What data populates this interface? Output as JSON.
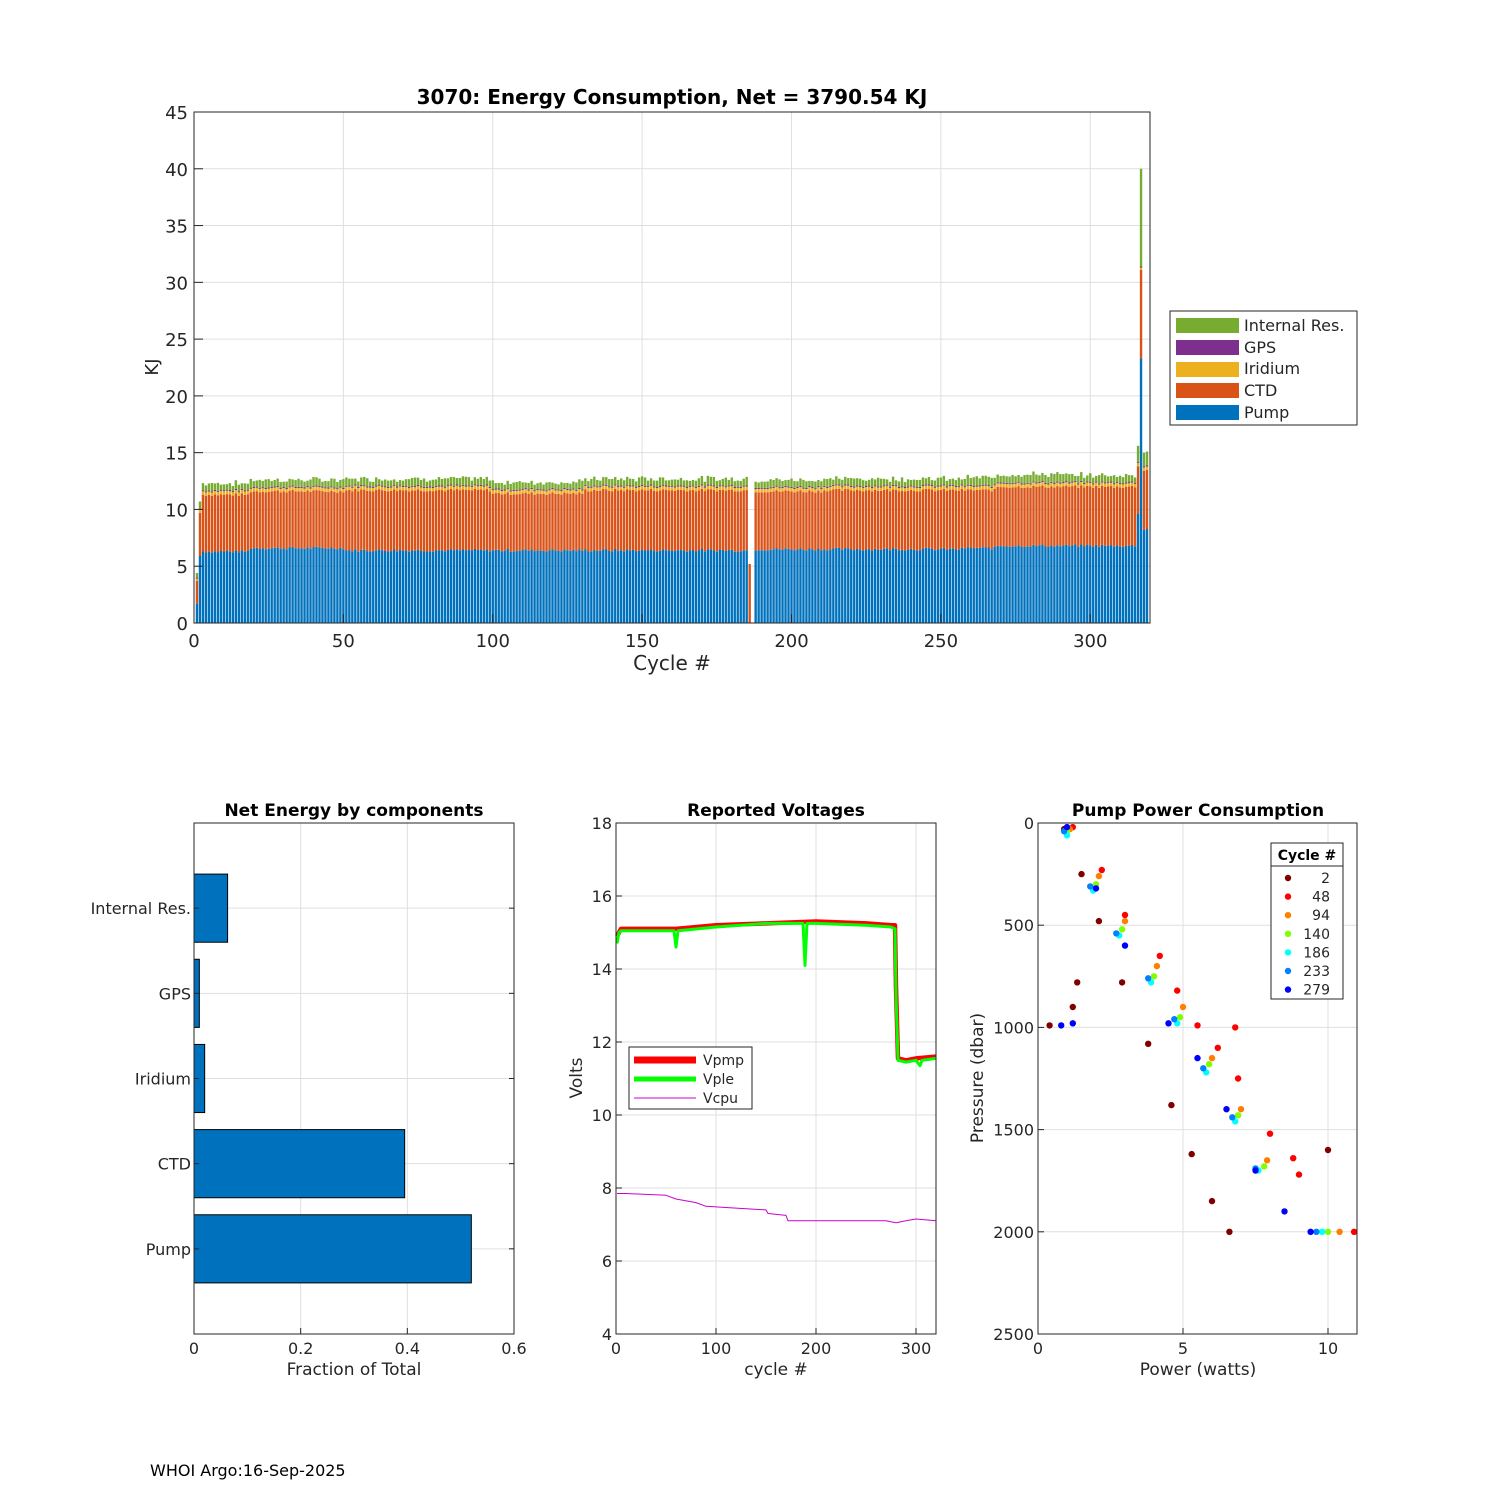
{
  "footer": "WHOI Argo:16-Sep-2025",
  "colors": {
    "pump": "#0072BD",
    "ctd": "#D95319",
    "iridium": "#EDB120",
    "gps": "#7E2F8E",
    "internal": "#77AC30",
    "vpmp": "#FF0000",
    "vple": "#00FF00",
    "vcpu": "#CC00CC",
    "grid": "#DFDFDF",
    "axis": "#262626"
  },
  "chart_data": [
    {
      "id": "energy",
      "type": "bar",
      "stacked": true,
      "title": "3070: Energy Consumption,  Net = 3790.54 KJ",
      "xlabel": "Cycle #",
      "ylabel": "KJ",
      "xlim": [
        0,
        320
      ],
      "ylim": [
        0,
        45
      ],
      "xticks": [
        0,
        50,
        100,
        150,
        200,
        250,
        300
      ],
      "yticks": [
        0,
        5,
        10,
        15,
        20,
        25,
        30,
        35,
        40,
        45
      ],
      "legend": [
        "Internal Res.",
        "GPS",
        "Iridium",
        "CTD",
        "Pump"
      ],
      "legend_position": "outside-right",
      "segments": [
        {
          "from": 1,
          "to": 1,
          "pump": 1.7,
          "ctd": 2.0,
          "iridium": 0.2,
          "gps": 0.1,
          "internal": 0.4
        },
        {
          "from": 2,
          "to": 2,
          "pump": 5.9,
          "ctd": 3.8,
          "iridium": 0.3,
          "gps": 0.1,
          "internal": 0.6
        },
        {
          "from": 3,
          "to": 18,
          "pump": 6.3,
          "ctd": 5.0,
          "iridium": 0.3,
          "gps": 0.1,
          "internal": 0.6
        },
        {
          "from": 19,
          "to": 50,
          "pump": 6.6,
          "ctd": 5.0,
          "iridium": 0.3,
          "gps": 0.1,
          "internal": 0.6
        },
        {
          "from": 51,
          "to": 99,
          "pump": 6.4,
          "ctd": 5.3,
          "iridium": 0.3,
          "gps": 0.1,
          "internal": 0.6
        },
        {
          "from": 100,
          "to": 130,
          "pump": 6.4,
          "ctd": 5.0,
          "iridium": 0.3,
          "gps": 0.1,
          "internal": 0.6
        },
        {
          "from": 131,
          "to": 185,
          "pump": 6.4,
          "ctd": 5.3,
          "iridium": 0.3,
          "gps": 0.1,
          "internal": 0.6
        },
        {
          "from": 186,
          "to": 186,
          "pump": 0,
          "ctd": 5.2,
          "iridium": 0,
          "gps": 0,
          "internal": 0
        },
        {
          "from": 187,
          "to": 187,
          "pump": 0,
          "ctd": 0,
          "iridium": 0,
          "gps": 0,
          "internal": 0
        },
        {
          "from": 188,
          "to": 210,
          "pump": 6.5,
          "ctd": 5.1,
          "iridium": 0.3,
          "gps": 0.1,
          "internal": 0.6
        },
        {
          "from": 211,
          "to": 257,
          "pump": 6.5,
          "ctd": 5.2,
          "iridium": 0.3,
          "gps": 0.1,
          "internal": 0.6
        },
        {
          "from": 258,
          "to": 268,
          "pump": 6.6,
          "ctd": 5.1,
          "iridium": 0.3,
          "gps": 0.1,
          "internal": 0.7
        },
        {
          "from": 269,
          "to": 290,
          "pump": 6.8,
          "ctd": 5.2,
          "iridium": 0.3,
          "gps": 0.1,
          "internal": 0.7
        },
        {
          "from": 291,
          "to": 315,
          "pump": 6.8,
          "ctd": 5.2,
          "iridium": 0.3,
          "gps": 0.1,
          "internal": 0.6
        },
        {
          "from": 316,
          "to": 316,
          "pump": 9.6,
          "ctd": 4.2,
          "iridium": 0.3,
          "gps": 0.1,
          "internal": 1.4
        },
        {
          "from": 317,
          "to": 317,
          "pump": 23.3,
          "ctd": 7.8,
          "iridium": 0.2,
          "gps": 0.1,
          "internal": 8.6
        },
        {
          "from": 318,
          "to": 319,
          "pump": 8.3,
          "ctd": 5.2,
          "iridium": 0.3,
          "gps": 0.1,
          "internal": 1.3
        }
      ]
    },
    {
      "id": "components",
      "type": "bar",
      "orientation": "horizontal",
      "title": "Net Energy by components",
      "xlabel": "Fraction of Total",
      "xlim": [
        0,
        0.6
      ],
      "xticks": [
        0,
        0.2,
        0.4,
        0.6
      ],
      "categories": [
        "Pump",
        "CTD",
        "Iridium",
        "GPS",
        "Internal Res."
      ],
      "values": [
        0.52,
        0.395,
        0.02,
        0.01,
        0.063
      ]
    },
    {
      "id": "voltages",
      "type": "line",
      "title": "Reported Voltages",
      "xlabel": "cycle #",
      "ylabel": "Volts",
      "xlim": [
        0,
        320
      ],
      "ylim": [
        4,
        18
      ],
      "xticks": [
        0,
        100,
        200,
        300
      ],
      "yticks": [
        4,
        6,
        8,
        10,
        12,
        14,
        16,
        18
      ],
      "legend_position": "middle-left",
      "series": [
        {
          "name": "Vpmp",
          "x": [
            1,
            5,
            30,
            60,
            100,
            150,
            200,
            250,
            275,
            279,
            280,
            282,
            290,
            300,
            320
          ],
          "y": [
            14.9,
            15.1,
            15.1,
            15.1,
            15.2,
            15.25,
            15.3,
            15.25,
            15.2,
            15.2,
            13.5,
            11.55,
            11.5,
            11.55,
            11.6
          ]
        },
        {
          "name": "Vple",
          "x": [
            1,
            3,
            5,
            58,
            60,
            62,
            100,
            150,
            187,
            189,
            191,
            200,
            250,
            275,
            279,
            280,
            282,
            290,
            300,
            304,
            306,
            320
          ],
          "y": [
            14.7,
            15.0,
            15.05,
            15.05,
            14.6,
            15.05,
            15.15,
            15.25,
            15.25,
            14.1,
            15.25,
            15.25,
            15.2,
            15.15,
            15.1,
            13.3,
            11.5,
            11.45,
            11.5,
            11.35,
            11.5,
            11.55
          ]
        },
        {
          "name": "Vcpu",
          "x": [
            1,
            10,
            50,
            60,
            80,
            90,
            120,
            150,
            152,
            170,
            172,
            200,
            250,
            270,
            280,
            290,
            300,
            320
          ],
          "y": [
            7.85,
            7.85,
            7.8,
            7.7,
            7.6,
            7.5,
            7.45,
            7.4,
            7.3,
            7.25,
            7.1,
            7.1,
            7.1,
            7.1,
            7.05,
            7.1,
            7.15,
            7.1
          ]
        }
      ]
    },
    {
      "id": "pump_power",
      "type": "scatter",
      "title": "Pump Power Consumption",
      "xlabel": "Power (watts)",
      "ylabel": "Pressure (dbar)",
      "xlim": [
        0,
        11
      ],
      "ylim": [
        0,
        2500
      ],
      "y_reversed": true,
      "xticks": [
        0,
        5,
        10
      ],
      "yticks": [
        0,
        500,
        1000,
        1500,
        2000,
        2500
      ],
      "legend_title": "Cycle #",
      "legend_position": "top-right",
      "series": [
        {
          "name": "2",
          "color": "#800000",
          "points": [
            [
              0.9,
              30
            ],
            [
              1.5,
              250
            ],
            [
              2.1,
              480
            ],
            [
              2.9,
              780
            ],
            [
              3.8,
              1080
            ],
            [
              4.6,
              1380
            ],
            [
              5.3,
              1620
            ],
            [
              6.0,
              1850
            ],
            [
              6.6,
              2000
            ],
            [
              1.35,
              780
            ],
            [
              1.2,
              900
            ],
            [
              0.4,
              990
            ],
            [
              10.0,
              1600
            ]
          ]
        },
        {
          "name": "48",
          "color": "#FF0000",
          "points": [
            [
              1.2,
              20
            ],
            [
              2.2,
              230
            ],
            [
              3.0,
              450
            ],
            [
              4.2,
              650
            ],
            [
              4.8,
              820
            ],
            [
              5.5,
              990
            ],
            [
              6.8,
              1000
            ],
            [
              6.2,
              1100
            ],
            [
              6.9,
              1250
            ],
            [
              8.0,
              1520
            ],
            [
              8.8,
              1640
            ],
            [
              9.0,
              1720
            ],
            [
              10.9,
              2000
            ]
          ]
        },
        {
          "name": "94",
          "color": "#FF8000",
          "points": [
            [
              1.1,
              30
            ],
            [
              2.1,
              260
            ],
            [
              3.0,
              480
            ],
            [
              4.1,
              700
            ],
            [
              5.0,
              900
            ],
            [
              6.0,
              1150
            ],
            [
              7.0,
              1400
            ],
            [
              7.9,
              1650
            ],
            [
              10.4,
              2000
            ]
          ]
        },
        {
          "name": "140",
          "color": "#80FF00",
          "points": [
            [
              1.0,
              40
            ],
            [
              2.0,
              300
            ],
            [
              2.9,
              520
            ],
            [
              4.0,
              750
            ],
            [
              4.9,
              950
            ],
            [
              5.9,
              1180
            ],
            [
              6.9,
              1430
            ],
            [
              7.8,
              1680
            ],
            [
              10.0,
              2000
            ]
          ]
        },
        {
          "name": "186",
          "color": "#00FFFF",
          "points": [
            [
              1.0,
              60
            ],
            [
              1.9,
              330
            ],
            [
              2.8,
              550
            ],
            [
              3.9,
              780
            ],
            [
              4.8,
              980
            ],
            [
              5.8,
              1220
            ],
            [
              6.8,
              1460
            ],
            [
              7.6,
              1700
            ],
            [
              9.8,
              2000
            ]
          ]
        },
        {
          "name": "233",
          "color": "#0080FF",
          "points": [
            [
              0.9,
              40
            ],
            [
              1.8,
              310
            ],
            [
              2.7,
              540
            ],
            [
              3.8,
              760
            ],
            [
              4.7,
              960
            ],
            [
              5.7,
              1200
            ],
            [
              6.7,
              1440
            ],
            [
              7.5,
              1690
            ],
            [
              9.6,
              2000
            ]
          ]
        },
        {
          "name": "279",
          "color": "#0000FF",
          "points": [
            [
              1.0,
              20
            ],
            [
              2.0,
              320
            ],
            [
              3.0,
              600
            ],
            [
              4.5,
              980
            ],
            [
              5.5,
              1150
            ],
            [
              6.5,
              1400
            ],
            [
              7.5,
              1700
            ],
            [
              8.5,
              1900
            ],
            [
              9.4,
              2000
            ],
            [
              0.8,
              990
            ],
            [
              1.2,
              980
            ]
          ]
        }
      ]
    }
  ]
}
